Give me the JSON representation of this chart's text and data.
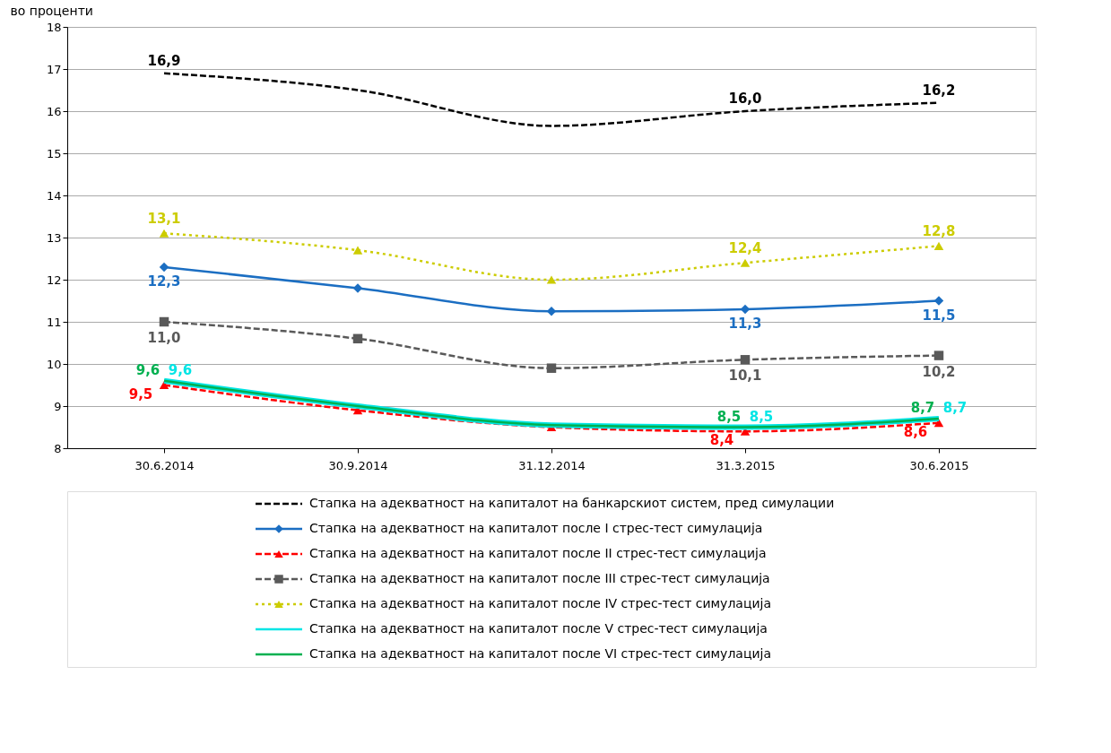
{
  "chart_data": {
    "type": "line",
    "title": "во проценти",
    "categories": [
      "30.6.2014",
      "30.9.2014",
      "31.12.2014",
      "31.3.2015",
      "30.6.2015"
    ],
    "ylim": [
      8,
      18
    ],
    "yticks": [
      8,
      9,
      10,
      11,
      12,
      13,
      14,
      15,
      16,
      17,
      18
    ],
    "grid": "y",
    "legend": "bottom",
    "series": [
      {
        "name": "Стапка на адекватност на капиталот на банкарскиот систем, пред симулации",
        "color": "#000000",
        "values": [
          16.9,
          16.5,
          15.65,
          16.0,
          16.2
        ],
        "value_labels": [
          "16,9",
          null,
          null,
          "16,0",
          "16,2"
        ],
        "line_style": "dashed",
        "marker": "none"
      },
      {
        "name": "Стапка на адекватност на капиталот после I стрес-тест симулација",
        "color": "#1b6ec2",
        "values": [
          12.3,
          11.8,
          11.25,
          11.3,
          11.5
        ],
        "value_labels": [
          "12,3",
          null,
          null,
          "11,3",
          "11,5"
        ],
        "line_style": "solid",
        "marker": "diamond"
      },
      {
        "name": "Стапка на адекватност на капиталот после II стрес-тест симулација",
        "color": "#ff0000",
        "values": [
          9.5,
          8.9,
          8.5,
          8.4,
          8.6
        ],
        "value_labels": [
          "9,5",
          null,
          null,
          "8,4",
          "8,6"
        ],
        "line_style": "dashed",
        "marker": "triangle"
      },
      {
        "name": "Стапка на адекватност на капиталот после III стрес-тест симулација",
        "color": "#595959",
        "values": [
          11.0,
          10.6,
          9.9,
          10.1,
          10.2
        ],
        "value_labels": [
          "11,0",
          null,
          null,
          "10,1",
          "10,2"
        ],
        "line_style": "dashed",
        "marker": "square"
      },
      {
        "name": "Стапка на адекватност на капиталот после IV стрес-тест симулација",
        "color": "#cccc00",
        "values": [
          13.1,
          12.7,
          12.0,
          12.4,
          12.8
        ],
        "value_labels": [
          "13,1",
          null,
          null,
          "12,4",
          "12,8"
        ],
        "line_style": "dotted",
        "marker": "triangle"
      },
      {
        "name": "Стапка на адекватност на капиталот после V стрес-тест симулација",
        "color": "#00e5e5",
        "values": [
          9.6,
          9.0,
          8.55,
          8.5,
          8.7
        ],
        "value_labels": [
          "9,6",
          null,
          null,
          "8,5",
          "8,7"
        ],
        "line_style": "solid",
        "marker": "none"
      },
      {
        "name": "Стапка на адекватност на капиталот после VI стрес-тест симулација",
        "color": "#00b050",
        "values": [
          9.6,
          9.0,
          8.55,
          8.5,
          8.7
        ],
        "value_labels": [
          "9,6",
          null,
          null,
          "8,5",
          "8,7"
        ],
        "line_style": "solid",
        "marker": "none"
      }
    ]
  }
}
